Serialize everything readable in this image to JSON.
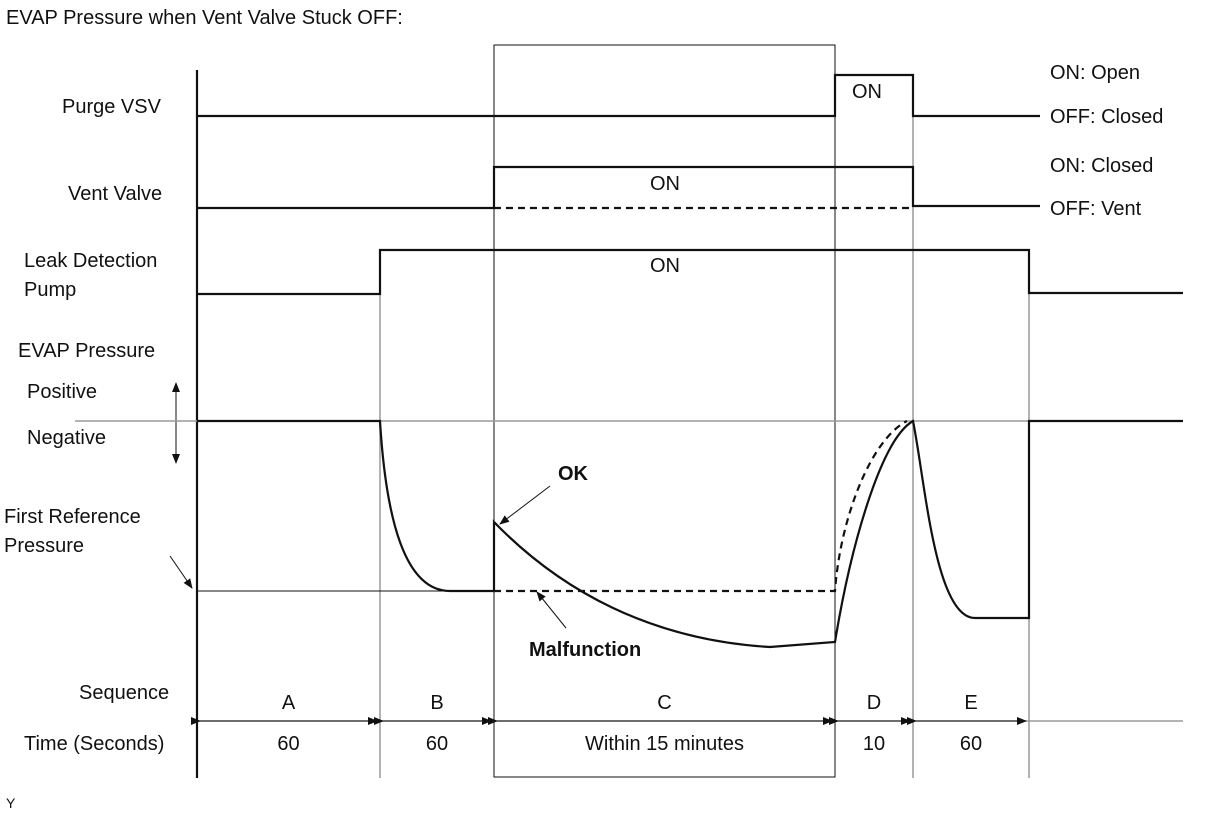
{
  "title": "EVAP Pressure when Vent Valve Stuck OFF:",
  "footer_mark": "Y",
  "signals": {
    "purge_vsv": {
      "label": "Purge VSV",
      "on_text": "ON",
      "state_on": "ON: Open",
      "state_off": "OFF: Closed"
    },
    "vent_valve": {
      "label": "Vent Valve",
      "on_text": "ON",
      "state_on": "ON: Closed",
      "state_off": "OFF: Vent"
    },
    "leak_pump": {
      "label_line1": "Leak Detection",
      "label_line2": "Pump",
      "on_text": "ON"
    }
  },
  "pressure": {
    "label": "EVAP Pressure",
    "positive": "Positive",
    "negative": "Negative",
    "ref_line1": "First Reference",
    "ref_line2": "Pressure",
    "ok": "OK",
    "malfunction": "Malfunction"
  },
  "sequence": {
    "label": "Sequence",
    "time_label": "Time (Seconds)",
    "phases": [
      {
        "letter": "A",
        "time": "60"
      },
      {
        "letter": "B",
        "time": "60"
      },
      {
        "letter": "C",
        "time": "Within 15 minutes"
      },
      {
        "letter": "D",
        "time": "10"
      },
      {
        "letter": "E",
        "time": "60"
      }
    ]
  }
}
